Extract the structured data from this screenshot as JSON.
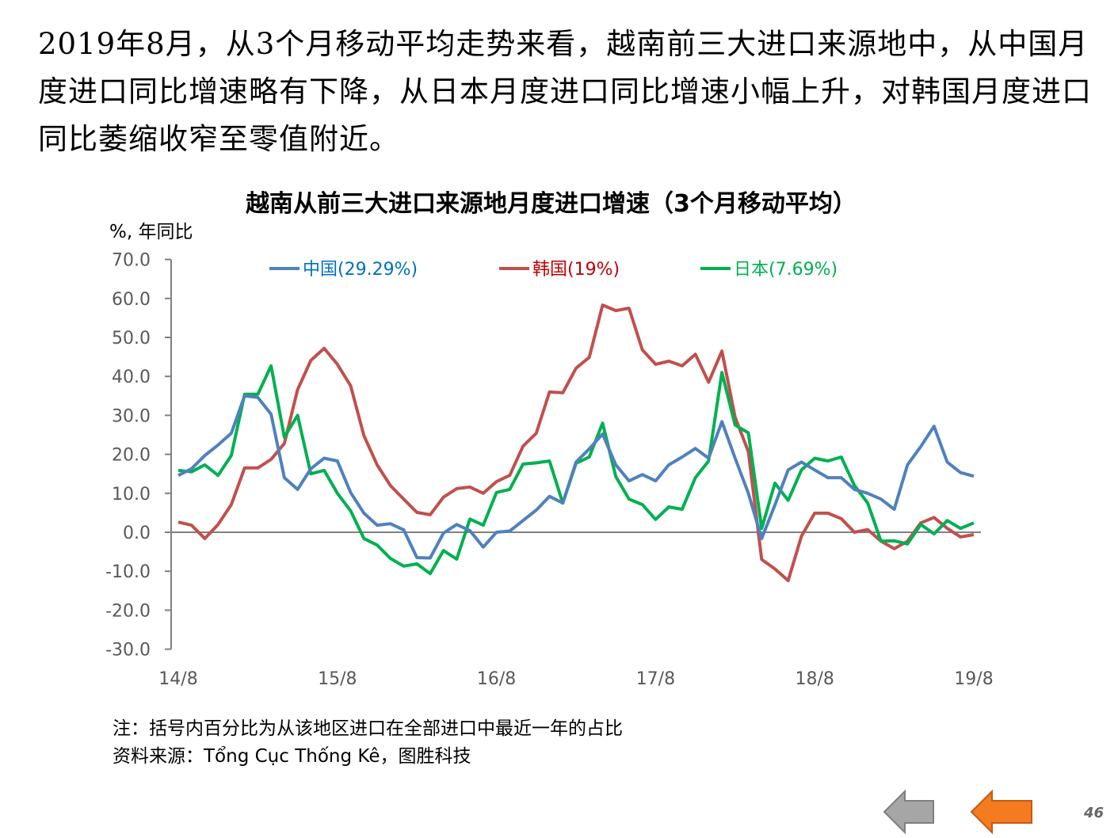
{
  "intro_text": "2019年8月，从3个月移动平均走势来看，越南前三大进口来源地中，从中国月度进口同比增速略有下降，从日本月度进口同比增速小幅上升，对韩国月度进口同比萎缩收窄至零值附近。",
  "chart_data": {
    "type": "line",
    "title": "越南从前三大进口来源地月度进口增速（3个月移动平均）",
    "ylabel": "%, 年同比",
    "xlabel": "",
    "ylim": [
      -30,
      70
    ],
    "yticks": [
      "70.0",
      "60.0",
      "50.0",
      "40.0",
      "30.0",
      "20.0",
      "10.0",
      "0.0",
      "-10.0",
      "-20.0",
      "-30.0"
    ],
    "ytick_values": [
      70,
      60,
      50,
      40,
      30,
      20,
      10,
      0,
      -10,
      -20,
      -30
    ],
    "xtick_labels": [
      "14/8",
      "15/8",
      "16/8",
      "17/8",
      "18/8",
      "19/8"
    ],
    "xtick_index": [
      0,
      12,
      24,
      36,
      48,
      60
    ],
    "x_start": "2014-08",
    "x_end": "2019-08",
    "legend_position": "top",
    "series": [
      {
        "name": "中国(29.29%)",
        "color": "#4f81bd",
        "legend_text_color": "#0070c0",
        "values": [
          14.6,
          16.3,
          19.7,
          22.4,
          25.4,
          35,
          34.6,
          30.3,
          14,
          11,
          16.3,
          19,
          18.3,
          10.2,
          4.9,
          1.8,
          2.2,
          0.6,
          -6.5,
          -6.6,
          -0.2,
          2,
          0.4,
          -3.8,
          0,
          0.3,
          3,
          5.7,
          9.2,
          7.5,
          18,
          21.4,
          25.2,
          17.3,
          13.2,
          14.8,
          13.2,
          17.3,
          19.3,
          21.5,
          19,
          28.4,
          19,
          10,
          -1.6,
          7,
          16,
          18,
          16,
          14,
          14,
          11,
          10,
          8.5,
          5.9,
          17.3,
          22,
          27.2,
          18,
          15.3,
          14.4
        ]
      },
      {
        "name": "韩国(19%)",
        "color": "#c0504d",
        "legend_text_color": "#c00000",
        "values": [
          2.6,
          1.8,
          -1.6,
          2,
          7.1,
          16.5,
          16.5,
          18.7,
          22.8,
          36.6,
          44.1,
          47.2,
          43.1,
          37.6,
          24.8,
          17.3,
          12,
          8.5,
          5.1,
          4.5,
          9,
          11.2,
          11.6,
          10,
          13,
          14.6,
          22.1,
          25.4,
          36,
          35.8,
          42.1,
          44.9,
          58.3,
          56.9,
          57.5,
          46.8,
          43.1,
          43.9,
          42.7,
          45.7,
          38.5,
          46.5,
          29.5,
          20.7,
          -7,
          -9.4,
          -12.4,
          -1,
          4.9,
          4.9,
          3.5,
          0,
          0.7,
          -2.3,
          -4.2,
          -2.3,
          2.4,
          3.8,
          1,
          -1.2,
          -0.6
        ]
      },
      {
        "name": "日本(7.69%)",
        "color": "#00b050",
        "legend_text_color": "#00b050",
        "values": [
          15.9,
          15.5,
          17.3,
          14.6,
          19.7,
          35.4,
          35.4,
          42.7,
          24.4,
          30,
          15,
          15.9,
          10,
          5.5,
          -1.6,
          -3.3,
          -6.7,
          -8.7,
          -8.1,
          -10.6,
          -4.7,
          -6.9,
          3.4,
          1.8,
          10.2,
          11,
          17.5,
          17.8,
          18.3,
          7.5,
          17.7,
          19.3,
          28,
          14.3,
          8.5,
          7.1,
          3.3,
          6.5,
          5.9,
          14,
          18.3,
          41,
          27.5,
          25.5,
          1,
          12.6,
          8.2,
          16,
          19,
          18.3,
          19.3,
          12,
          7.5,
          -2.3,
          -2.2,
          -3,
          2,
          -0.4,
          3,
          1,
          2.4
        ]
      }
    ]
  },
  "notes": {
    "note": "注：括号内百分比为从该地区进口在全部进口中最近一年的占比",
    "source": "资料来源：Tổng Cục Thống Kê，图胜科技"
  },
  "page_number": "46",
  "nav": {
    "back_color": "#a6a6a6",
    "prev_color": "#f47b20"
  }
}
